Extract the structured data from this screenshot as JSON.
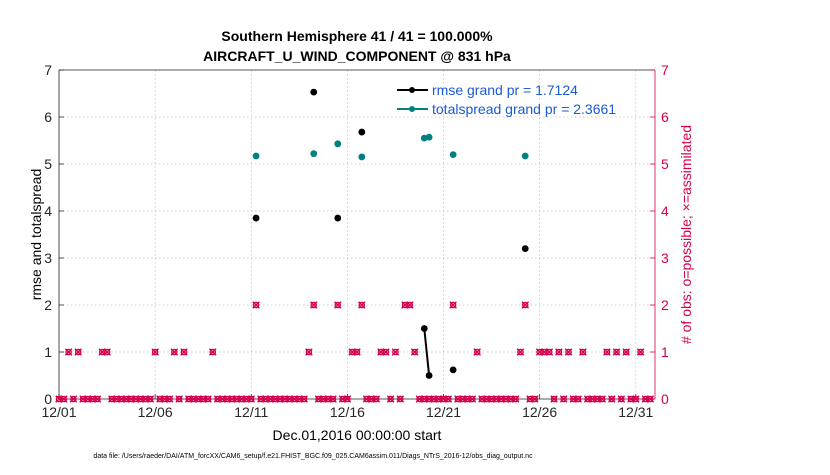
{
  "chart_data": {
    "type": "scatter",
    "title": [
      "Southern Hemisphere 41 / 41 = 100.000%",
      "AIRCRAFT_U_WIND_COMPONENT @ 831 hPa"
    ],
    "xlabel": "Dec.01,2016 00:00:00 start",
    "ylabel": "rmse and totalspread",
    "y2label": "# of obs: o=possible; ×=assimilated",
    "footnote": "data file: /Users/raeder/DAI/ATM_forcXX/CAM6_setup/f.e21.FHIST_BGC.f09_025.CAM6assim.011/Diags_NTrS_2016-12/obs_diag_output.nc",
    "xlim": [
      1,
      32
    ],
    "ylim": [
      0,
      7
    ],
    "y2lim": [
      0,
      7
    ],
    "x_ticks": [
      1,
      6,
      11,
      16,
      21,
      26,
      31
    ],
    "x_tick_labels": [
      "12/01",
      "12/06",
      "12/11",
      "12/16",
      "12/21",
      "12/26",
      "12/31"
    ],
    "y_ticks": [
      0,
      1,
      2,
      3,
      4,
      5,
      6,
      7
    ],
    "y_tick_labels": [
      "0",
      "1",
      "2",
      "3",
      "4",
      "5",
      "6",
      "7"
    ],
    "y2_ticks": [
      0,
      1,
      2,
      3,
      4,
      5,
      6,
      7
    ],
    "y2_tick_labels": [
      "0",
      "1",
      "2",
      "3",
      "4",
      "5",
      "6",
      "7"
    ],
    "grid": true,
    "legend_position": "top-right",
    "colors": {
      "rmse": "#000000",
      "totalspread": "#008080",
      "obs": "#d6004f",
      "right_axis": "#d6004f",
      "legend_text": "#1a5bd6"
    },
    "series": [
      {
        "name": "rmse grand pr = 1.7124",
        "axis": "left",
        "points": [
          {
            "x": 11.25,
            "y": 3.85
          },
          {
            "x": 14.25,
            "y": 6.53
          },
          {
            "x": 15.5,
            "y": 3.85
          },
          {
            "x": 16.75,
            "y": 5.68
          },
          {
            "x": 20.0,
            "y": 1.5
          },
          {
            "x": 20.25,
            "y": 0.5
          },
          {
            "x": 21.5,
            "y": 0.62
          },
          {
            "x": 25.25,
            "y": 3.2
          }
        ],
        "segments": [
          [
            4,
            5
          ]
        ]
      },
      {
        "name": "totalspread grand pr = 2.3661",
        "axis": "left",
        "points": [
          {
            "x": 11.25,
            "y": 5.17
          },
          {
            "x": 14.25,
            "y": 5.22
          },
          {
            "x": 15.5,
            "y": 5.43
          },
          {
            "x": 16.75,
            "y": 5.15
          },
          {
            "x": 20.0,
            "y": 5.55
          },
          {
            "x": 20.25,
            "y": 5.57
          },
          {
            "x": 21.5,
            "y": 5.2
          },
          {
            "x": 25.25,
            "y": 5.17
          }
        ]
      },
      {
        "name": "obs possible / assimilated",
        "axis": "right",
        "x": [
          1,
          1.25,
          1.5,
          1.75,
          2,
          2.25,
          2.5,
          2.75,
          3,
          3.25,
          3.5,
          3.75,
          4,
          4.25,
          4.5,
          4.75,
          5,
          5.25,
          5.5,
          5.75,
          6,
          6.25,
          6.5,
          6.75,
          7,
          7.25,
          7.5,
          7.75,
          8,
          8.25,
          8.5,
          8.75,
          9,
          9.25,
          9.5,
          9.75,
          10,
          10.25,
          10.5,
          10.75,
          11,
          11.25,
          11.5,
          11.75,
          12,
          12.25,
          12.5,
          12.75,
          13,
          13.25,
          13.5,
          13.75,
          14,
          14.25,
          14.5,
          14.75,
          15,
          15.25,
          15.5,
          15.75,
          16,
          16.25,
          16.5,
          16.75,
          17,
          17.25,
          17.5,
          17.75,
          18,
          18.25,
          18.5,
          18.75,
          19,
          19.25,
          19.5,
          19.75,
          20,
          20.25,
          20.5,
          20.75,
          21,
          21.25,
          21.5,
          21.75,
          22,
          22.25,
          22.5,
          22.75,
          23,
          23.25,
          23.5,
          23.75,
          24,
          24.25,
          24.5,
          24.75,
          25,
          25.25,
          25.5,
          25.75,
          26,
          26.25,
          26.5,
          26.75,
          27,
          27.25,
          27.5,
          27.75,
          28,
          28.25,
          28.5,
          28.75,
          29,
          29.25,
          29.5,
          29.75,
          30,
          30.25,
          30.5,
          30.75,
          31,
          31.25,
          31.5,
          31.75
        ],
        "values": [
          0,
          0,
          1,
          0,
          1,
          0,
          0,
          0,
          0,
          1,
          1,
          0,
          0,
          0,
          0,
          0,
          0,
          0,
          0,
          0,
          1,
          0,
          0,
          0,
          1,
          0,
          1,
          0,
          0,
          0,
          0,
          0,
          1,
          0,
          0,
          0,
          0,
          0,
          0,
          0,
          0,
          2,
          0,
          0,
          0,
          0,
          0,
          0,
          0,
          0,
          0,
          0,
          1,
          2,
          0,
          0,
          0,
          0,
          2,
          0,
          0,
          1,
          1,
          2,
          0,
          0,
          0,
          1,
          1,
          0,
          1,
          0,
          2,
          2,
          1,
          0,
          0,
          0,
          0,
          0,
          0,
          0,
          2,
          0,
          0,
          0,
          0,
          1,
          0,
          0,
          0,
          0,
          0,
          0,
          0,
          0,
          1,
          2,
          0,
          0,
          1,
          1,
          1,
          0,
          1,
          0,
          1,
          0,
          0,
          1,
          0,
          0,
          0,
          0,
          1,
          0,
          1,
          0,
          1,
          0,
          0,
          1,
          0,
          0
        ]
      }
    ]
  }
}
